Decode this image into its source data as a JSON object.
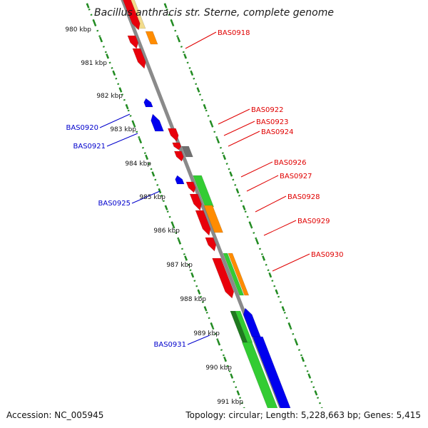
{
  "title": "Bacillus anthracis str. Sterne, complete genome",
  "accession": "Accession: NC_005945",
  "summary": "Topology: circular; Length: 5,228,663 bp; Genes: 5,415",
  "scale_labels": [
    "980 kbp",
    "981 kbp",
    "982 kbp",
    "983 kbp",
    "984 kbp",
    "985 kbp",
    "986 kbp",
    "987 kbp",
    "988 kbp",
    "989 kbp",
    "990 kbp",
    "991 kbp"
  ],
  "colors": {
    "red": "#e8000b",
    "orange": "#ff8c00",
    "green": "#33cc33",
    "dark_green": "#1f7a1f",
    "blue": "#0000ee",
    "gray": "#707070",
    "pale_yellow": "#f2dc8c",
    "backbone": "#8a8a8a",
    "ruler": "#228b22",
    "label_red": "#e00000",
    "label_blue": "#0000cc"
  },
  "gene_labels": {
    "forward": [
      "BAS0918",
      "BAS0922",
      "BAS0923",
      "BAS0924",
      "BAS0926",
      "BAS0927",
      "BAS0928",
      "BAS0929",
      "BAS0930"
    ],
    "reverse": [
      "BAS0920",
      "BAS0921",
      "BAS0925",
      "BAS0931"
    ]
  }
}
